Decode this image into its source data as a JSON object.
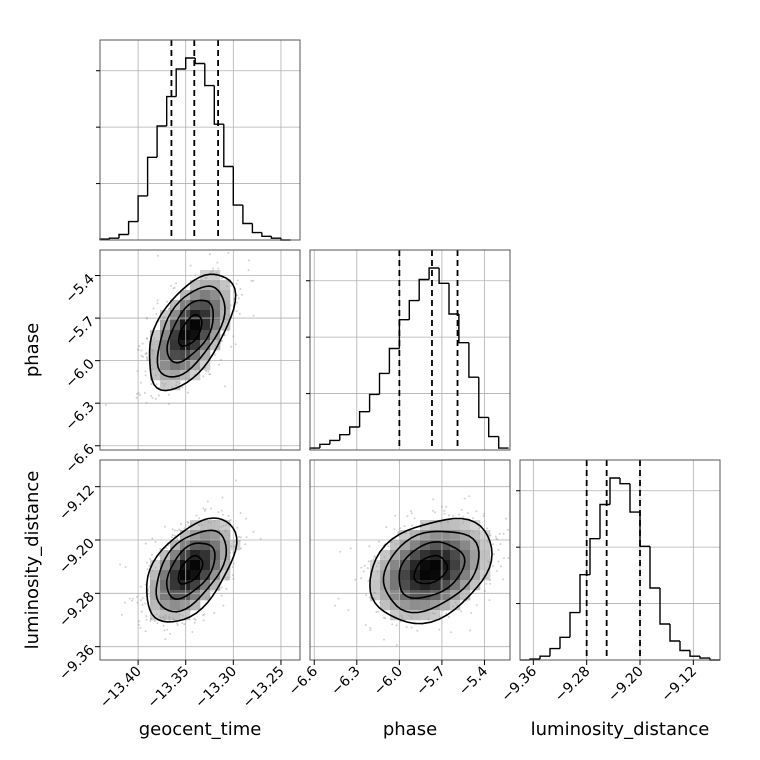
{
  "chart_data": {
    "type": "corner",
    "parameters": [
      "geocent_time",
      "phase",
      "luminosity_distance"
    ],
    "ranges": {
      "geocent_time": [
        -13.44,
        -13.23
      ],
      "phase": [
        -6.63,
        -5.22
      ],
      "luminosity_distance": [
        -9.38,
        -9.08
      ]
    },
    "ticks": {
      "geocent_time": [
        "−13.40",
        "−13.35",
        "−13.30",
        "−13.25"
      ],
      "phase": [
        "−6.6",
        "−6.3",
        "−6.0",
        "−5.7",
        "−5.4"
      ],
      "luminosity_distance": [
        "−9.36",
        "−9.28",
        "−9.20",
        "−9.12"
      ]
    },
    "grid": true,
    "quantiles": {
      "geocent_time": [
        -13.365,
        -13.341,
        -13.316
      ],
      "phase": [
        -6.0,
        -5.77,
        -5.59
      ],
      "luminosity_distance": [
        -9.28,
        -9.25,
        -9.2
      ]
    },
    "histograms": {
      "geocent_time": {
        "edges": [
          -13.44,
          -13.43,
          -13.42,
          -13.41,
          -13.4,
          -13.39,
          -13.38,
          -13.37,
          -13.36,
          -13.35,
          -13.34,
          -13.33,
          -13.32,
          -13.31,
          -13.3,
          -13.29,
          -13.28,
          -13.27,
          -13.26,
          -13.25,
          -13.24
        ],
        "counts": [
          0.5,
          1,
          3,
          10,
          24,
          45,
          62,
          78,
          93,
          99,
          96,
          84,
          63,
          40,
          19,
          9,
          4,
          2,
          1,
          0
        ]
      },
      "phase": {
        "edges": [
          -6.63,
          -6.56,
          -6.49,
          -6.42,
          -6.35,
          -6.28,
          -6.21,
          -6.14,
          -6.07,
          -6.0,
          -5.93,
          -5.86,
          -5.79,
          -5.72,
          -5.65,
          -5.58,
          -5.51,
          -5.44,
          -5.37,
          -5.3,
          -5.23
        ],
        "counts": [
          1,
          3,
          5,
          8,
          12,
          20,
          29,
          40,
          53,
          68,
          78,
          89,
          95,
          87,
          71,
          56,
          38,
          17,
          7,
          1
        ]
      },
      "luminosity_distance": {
        "edges": [
          -9.38,
          -9.365,
          -9.35,
          -9.335,
          -9.32,
          -9.305,
          -9.29,
          -9.275,
          -9.26,
          -9.245,
          -9.23,
          -9.215,
          -9.2,
          -9.185,
          -9.17,
          -9.155,
          -9.14,
          -9.125,
          -9.11,
          -9.095,
          -9.08
        ],
        "counts": [
          0,
          0.5,
          2,
          6,
          12,
          25,
          45,
          64,
          82,
          96,
          93,
          78,
          60,
          38,
          19,
          10,
          5,
          2,
          1,
          0
        ]
      }
    },
    "densities": [
      {
        "x": "geocent_time",
        "y": "phase",
        "mean": [
          -13.345,
          -5.79
        ],
        "sd": [
          0.022,
          0.2
        ],
        "corr": 0.55
      },
      {
        "x": "geocent_time",
        "y": "luminosity_distance",
        "mean": [
          -13.345,
          -9.245
        ],
        "sd": [
          0.023,
          0.038
        ],
        "corr": 0.5
      },
      {
        "x": "phase",
        "y": "luminosity_distance",
        "mean": [
          -5.78,
          -9.245
        ],
        "sd": [
          0.21,
          0.038
        ],
        "corr": 0.3
      }
    ]
  }
}
